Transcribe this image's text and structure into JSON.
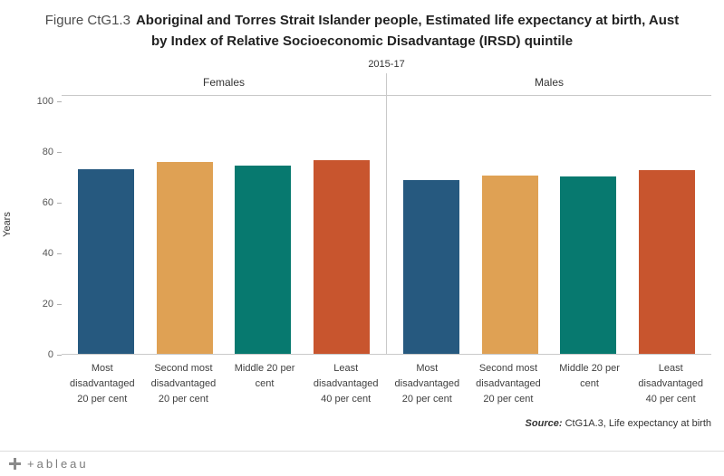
{
  "title": {
    "figure_number": "Figure CtG1.3",
    "line1": "Aboriginal and Torres Strait Islander people, Estimated life expectancy at birth, Aust",
    "line2": "by Index of Relative Socioeconomic Disadvantage (IRSD) quintile"
  },
  "chart_data": {
    "type": "bar",
    "period_label": "2015-17",
    "ylabel": "Years",
    "ylim": [
      0,
      100
    ],
    "yticks": [
      0,
      20,
      40,
      60,
      80,
      100
    ],
    "grid": false,
    "legend": "none",
    "categories": [
      "Most\ndisadvantaged\n20 per cent",
      "Second most\ndisadvantaged\n20 per cent",
      "Middle 20 per\ncent",
      "Least\ndisadvantaged\n40 per cent"
    ],
    "series": [
      {
        "name": "Females",
        "values": [
          72.9,
          75.6,
          74.3,
          76.6
        ]
      },
      {
        "name": "Males",
        "values": [
          68.4,
          70.4,
          70.1,
          72.4
        ]
      }
    ],
    "bar_colors": [
      "#26597f",
      "#dfa154",
      "#07796f",
      "#c8552e"
    ]
  },
  "source": {
    "prefix": "Source:",
    "text": " CtG1A.3, Life expectancy at birth"
  },
  "footer": {
    "brand": "+ableau"
  }
}
